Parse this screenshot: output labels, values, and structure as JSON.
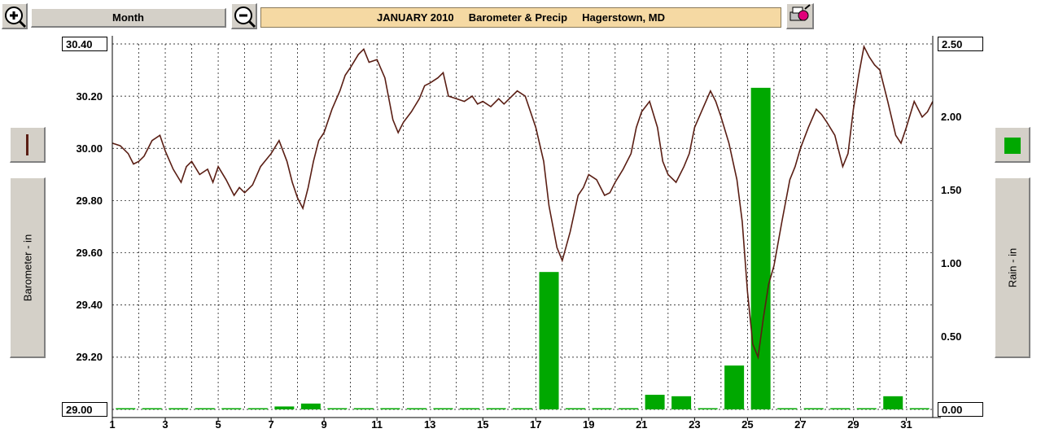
{
  "toolbar": {
    "period_label": "Month",
    "title": "JANUARY 2010     Barometer & Precip     Hagerstown, MD"
  },
  "left_axis_button": {
    "label": "Barometer - in"
  },
  "right_axis_button": {
    "label": "Rain - in"
  },
  "colors": {
    "pressure": "#5a1e14",
    "rain": "#00a800",
    "title_bg": "#f5d9a3"
  },
  "icons": {
    "zoom_in": "zoom-in-icon",
    "zoom_out": "zoom-out-icon",
    "print": "print-icon"
  },
  "chart_data": {
    "type": "bar+line",
    "title": "JANUARY 2010     Barometer & Precip     Hagerstown, MD",
    "x_ticks": [
      "1",
      "3",
      "5",
      "7",
      "9",
      "11",
      "13",
      "15",
      "17",
      "19",
      "21",
      "23",
      "25",
      "27",
      "29",
      "31"
    ],
    "xlim": [
      1,
      32
    ],
    "left_axis": {
      "label": "Barometer - in",
      "ticks": [
        "30.40",
        "30.20",
        "30.00",
        "29.80",
        "29.60",
        "29.40",
        "29.20",
        "29.00"
      ],
      "ylim": [
        29.0,
        30.4
      ]
    },
    "right_axis": {
      "label": "Rain - in",
      "ticks": [
        "2.50",
        "2.00",
        "1.50",
        "1.00",
        "0.50",
        "0.00"
      ],
      "ylim": [
        0,
        2.5
      ]
    },
    "grid": true,
    "rain_series": {
      "name": "Rain - in",
      "days": [
        1,
        2,
        3,
        4,
        5,
        6,
        7,
        8,
        9,
        10,
        11,
        12,
        13,
        14,
        15,
        16,
        17,
        18,
        19,
        20,
        21,
        22,
        23,
        24,
        25,
        26,
        27,
        28,
        29,
        30,
        31
      ],
      "values": [
        0,
        0,
        0,
        0,
        0,
        0,
        0.02,
        0.04,
        0,
        0,
        0,
        0,
        0,
        0,
        0,
        0,
        0.94,
        0,
        0,
        0,
        0.1,
        0.09,
        0,
        0.3,
        2.2,
        0,
        0,
        0,
        0,
        0.09,
        0
      ]
    },
    "pressure_series": {
      "name": "Barometer - in",
      "x": [
        1.0,
        1.3,
        1.6,
        1.8,
        2.0,
        2.2,
        2.5,
        2.8,
        3.0,
        3.3,
        3.6,
        3.8,
        4.0,
        4.3,
        4.6,
        4.8,
        5.0,
        5.3,
        5.6,
        5.8,
        6.0,
        6.3,
        6.6,
        7.0,
        7.3,
        7.6,
        7.8,
        8.0,
        8.2,
        8.4,
        8.6,
        8.8,
        9.0,
        9.3,
        9.6,
        9.8,
        10.0,
        10.3,
        10.5,
        10.7,
        11.0,
        11.3,
        11.6,
        11.8,
        12.0,
        12.3,
        12.6,
        12.8,
        13.0,
        13.3,
        13.5,
        13.7,
        14.0,
        14.3,
        14.6,
        14.8,
        15.0,
        15.3,
        15.6,
        15.8,
        16.0,
        16.3,
        16.6,
        16.8,
        17.0,
        17.3,
        17.5,
        17.8,
        18.0,
        18.3,
        18.6,
        18.8,
        19.0,
        19.3,
        19.6,
        19.8,
        20.0,
        20.3,
        20.6,
        20.8,
        21.0,
        21.3,
        21.6,
        21.8,
        22.0,
        22.3,
        22.6,
        22.8,
        23.0,
        23.3,
        23.6,
        23.8,
        24.0,
        24.3,
        24.6,
        24.8,
        25.0,
        25.2,
        25.4,
        25.6,
        25.8,
        26.0,
        26.3,
        26.6,
        26.8,
        27.0,
        27.3,
        27.6,
        27.8,
        28.0,
        28.3,
        28.6,
        28.8,
        29.0,
        29.2,
        29.4,
        29.6,
        29.8,
        30.0,
        30.3,
        30.6,
        30.8,
        31.0,
        31.3,
        31.6,
        31.8,
        32.0
      ],
      "y": [
        30.02,
        30.01,
        29.98,
        29.94,
        29.95,
        29.97,
        30.03,
        30.05,
        29.99,
        29.92,
        29.87,
        29.93,
        29.95,
        29.9,
        29.92,
        29.87,
        29.93,
        29.88,
        29.82,
        29.85,
        29.83,
        29.86,
        29.93,
        29.98,
        30.03,
        29.95,
        29.87,
        29.81,
        29.77,
        29.85,
        29.95,
        30.03,
        30.06,
        30.15,
        30.22,
        30.28,
        30.31,
        30.36,
        30.38,
        30.33,
        30.34,
        30.27,
        30.11,
        30.06,
        30.1,
        30.14,
        30.19,
        30.24,
        30.25,
        30.27,
        30.29,
        30.2,
        30.19,
        30.18,
        30.2,
        30.17,
        30.18,
        30.16,
        30.19,
        30.17,
        30.19,
        30.22,
        30.2,
        30.14,
        30.08,
        29.95,
        29.78,
        29.62,
        29.57,
        29.68,
        29.82,
        29.85,
        29.9,
        29.88,
        29.82,
        29.83,
        29.87,
        29.92,
        29.98,
        30.08,
        30.14,
        30.18,
        30.08,
        29.95,
        29.9,
        29.87,
        29.93,
        29.98,
        30.08,
        30.15,
        30.22,
        30.18,
        30.12,
        30.02,
        29.88,
        29.72,
        29.45,
        29.25,
        29.2,
        29.35,
        29.48,
        29.55,
        29.72,
        29.88,
        29.93,
        30.0,
        30.08,
        30.15,
        30.13,
        30.1,
        30.05,
        29.93,
        29.98,
        30.15,
        30.28,
        30.39,
        30.35,
        30.32,
        30.3,
        30.18,
        30.05,
        30.02,
        30.08,
        30.18,
        30.12,
        30.14,
        30.18
      ]
    }
  }
}
